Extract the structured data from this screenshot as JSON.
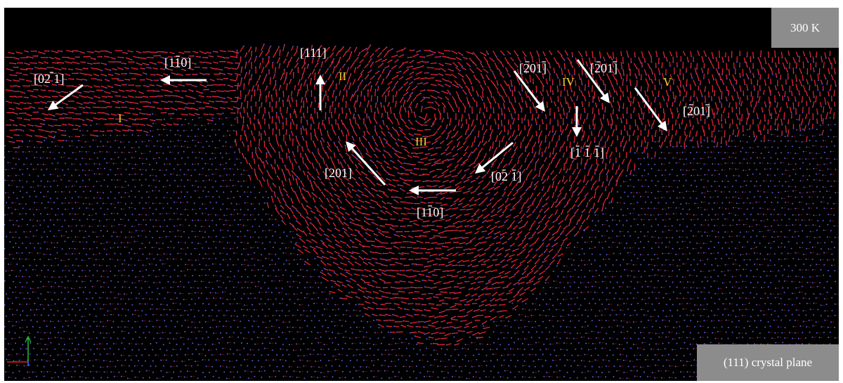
{
  "figure": {
    "temperature_label": "300 K",
    "plane_label": "(111) crystal plane"
  },
  "regions": [
    {
      "id": "I",
      "label": "I"
    },
    {
      "id": "II",
      "label": "II"
    },
    {
      "id": "III",
      "label": "III"
    },
    {
      "id": "IV",
      "label": "IV"
    },
    {
      "id": "V",
      "label": "V"
    }
  ],
  "directions": [
    {
      "id": "d1",
      "text": "[02 1]",
      "bars": [
        false,
        false,
        false,
        true
      ]
    },
    {
      "id": "d2",
      "text": "[110]",
      "bars": [
        false,
        false,
        true,
        false
      ]
    },
    {
      "id": "d3",
      "text": "[111]",
      "bars": [
        false,
        false,
        false,
        false
      ]
    },
    {
      "id": "d4",
      "text": "[201]",
      "bars": [
        false,
        true,
        false,
        false,
        true
      ]
    },
    {
      "id": "d5",
      "text": "[201]",
      "bars": [
        false,
        true,
        false,
        false,
        true
      ]
    },
    {
      "id": "d6",
      "text": "[201]",
      "bars": [
        false,
        true,
        false,
        false,
        true
      ]
    },
    {
      "id": "d7",
      "text": "[1 1 1]",
      "bars": [
        false,
        true,
        false,
        true,
        false,
        true,
        false
      ]
    },
    {
      "id": "d8",
      "text": "[201]",
      "bars": [
        false,
        false,
        false,
        false,
        false
      ]
    },
    {
      "id": "d9",
      "text": "[02 1]",
      "bars": [
        false,
        false,
        true,
        false,
        true,
        false
      ]
    },
    {
      "id": "d10",
      "text": "[110]",
      "bars": [
        false,
        false,
        true,
        false,
        false
      ]
    }
  ],
  "colors": {
    "background": "#000000",
    "damaged_atoms": "#e8202a",
    "lattice_atoms": "#5a5ad6",
    "arrows": "#ffffff",
    "region_labels": "#e8d21e",
    "label_boxes": "#8c8c8c"
  },
  "axes_triad": {
    "x_color": "#e02020",
    "y_color": "#20c040",
    "z_color": "#3050e0"
  }
}
